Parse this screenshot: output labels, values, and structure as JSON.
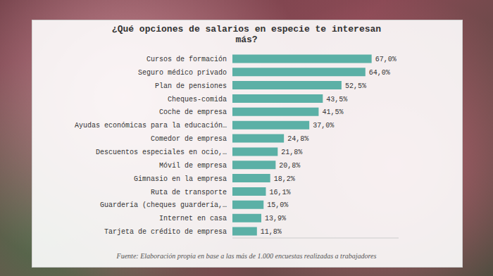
{
  "chart_data": {
    "type": "bar",
    "orientation": "horizontal",
    "title": "¿Qué opciones de salarios en especie te interesan más?",
    "source": "Fuente: Elaboración propia en base a las más de 1.000 encuestas realizadas a trabajadores",
    "categories": [
      "Cursos de formación",
      "Seguro médico privado",
      "Plan de pensiones",
      "Cheques-comida",
      "Coche de empresa",
      "Ayudas económicas para la educación…",
      "Comedor de empresa",
      "Descuentos especiales en ocio,…",
      "Móvil de empresa",
      "Gimnasio en la empresa",
      "Ruta de transporte",
      "Guardería (cheques guardería,…",
      "Internet en casa",
      "Tarjeta de crédito de empresa"
    ],
    "values": [
      67.0,
      64.0,
      52.5,
      43.5,
      41.5,
      37.0,
      24.8,
      21.8,
      20.8,
      18.2,
      16.1,
      15.0,
      13.9,
      11.8
    ],
    "value_labels": [
      "67,0%",
      "64,0%",
      "52,5%",
      "43,5%",
      "41,5%",
      "37,0%",
      "24,8%",
      "21,8%",
      "20,8%",
      "18,2%",
      "16,1%",
      "15,0%",
      "13,9%",
      "11,8%"
    ],
    "color": "#5bb0a6",
    "xlim": [
      0,
      80
    ],
    "data_labels": true,
    "tick_labels": "y"
  }
}
